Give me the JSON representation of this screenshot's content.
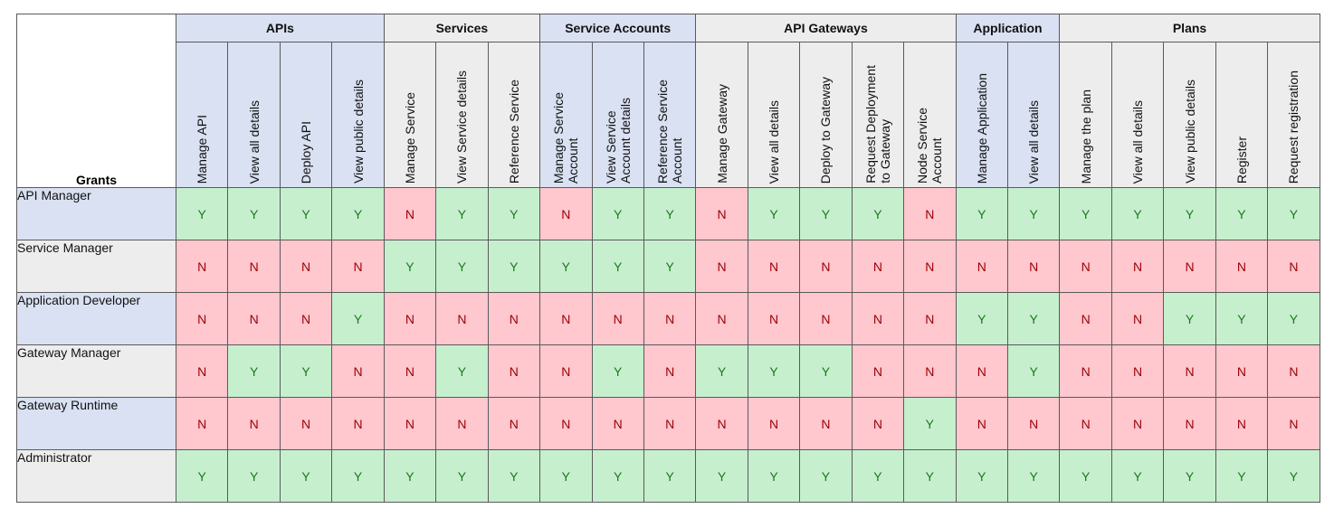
{
  "corner_label": "Grants",
  "groups": [
    {
      "name": "APIs",
      "shade": "blue",
      "columns": [
        "Manage API",
        "View all details",
        "Deploy API",
        "View public details"
      ]
    },
    {
      "name": "Services",
      "shade": "gray",
      "columns": [
        "Manage Service",
        "View Service details",
        "Reference Service"
      ]
    },
    {
      "name": "Service Accounts",
      "shade": "blue",
      "columns": [
        "Manage Service\nAccount",
        "View Service\nAccount details",
        "Reference Service\nAccount"
      ]
    },
    {
      "name": "API Gateways",
      "shade": "gray",
      "columns": [
        "Manage Gateway",
        "View all details",
        "Deploy to Gateway",
        "Request Deployment\nto Gateway",
        "Node Service\nAccount"
      ]
    },
    {
      "name": "Application",
      "shade": "blue",
      "columns": [
        "Manage Application",
        "View all details"
      ]
    },
    {
      "name": "Plans",
      "shade": "gray",
      "columns": [
        "Manage the plan",
        "View all details",
        "View public details",
        "Register",
        "Request registration"
      ]
    }
  ],
  "rows": [
    {
      "role": "API Manager",
      "shade": "blue",
      "values": [
        "Y",
        "Y",
        "Y",
        "Y",
        "N",
        "Y",
        "Y",
        "N",
        "Y",
        "Y",
        "N",
        "Y",
        "Y",
        "Y",
        "N",
        "Y",
        "Y",
        "Y",
        "Y",
        "Y",
        "Y",
        "Y"
      ]
    },
    {
      "role": "Service Manager",
      "shade": "gray",
      "values": [
        "N",
        "N",
        "N",
        "N",
        "Y",
        "Y",
        "Y",
        "Y",
        "Y",
        "Y",
        "N",
        "N",
        "N",
        "N",
        "N",
        "N",
        "N",
        "N",
        "N",
        "N",
        "N",
        "N"
      ]
    },
    {
      "role": "Application Developer",
      "shade": "blue",
      "values": [
        "N",
        "N",
        "N",
        "Y",
        "N",
        "N",
        "N",
        "N",
        "N",
        "N",
        "N",
        "N",
        "N",
        "N",
        "N",
        "Y",
        "Y",
        "N",
        "N",
        "Y",
        "Y",
        "Y"
      ]
    },
    {
      "role": "Gateway Manager",
      "shade": "gray",
      "values": [
        "N",
        "Y",
        "Y",
        "N",
        "N",
        "Y",
        "N",
        "N",
        "Y",
        "N",
        "Y",
        "Y",
        "Y",
        "N",
        "N",
        "N",
        "Y",
        "N",
        "N",
        "N",
        "N",
        "N"
      ]
    },
    {
      "role": "Gateway Runtime",
      "shade": "blue",
      "values": [
        "N",
        "N",
        "N",
        "N",
        "N",
        "N",
        "N",
        "N",
        "N",
        "N",
        "N",
        "N",
        "N",
        "N",
        "Y",
        "N",
        "N",
        "N",
        "N",
        "N",
        "N",
        "N"
      ]
    },
    {
      "role": "Administrator",
      "shade": "gray",
      "values": [
        "Y",
        "Y",
        "Y",
        "Y",
        "Y",
        "Y",
        "Y",
        "Y",
        "Y",
        "Y",
        "Y",
        "Y",
        "Y",
        "Y",
        "Y",
        "Y",
        "Y",
        "Y",
        "Y",
        "Y",
        "Y",
        "Y"
      ]
    }
  ],
  "colors": {
    "header_blue": "#d9e1f2",
    "header_gray": "#ededed",
    "yes_fill": "#c6efce",
    "yes_text": "#1a7a1a",
    "no_fill": "#ffc7ce",
    "no_text": "#9c0006"
  }
}
